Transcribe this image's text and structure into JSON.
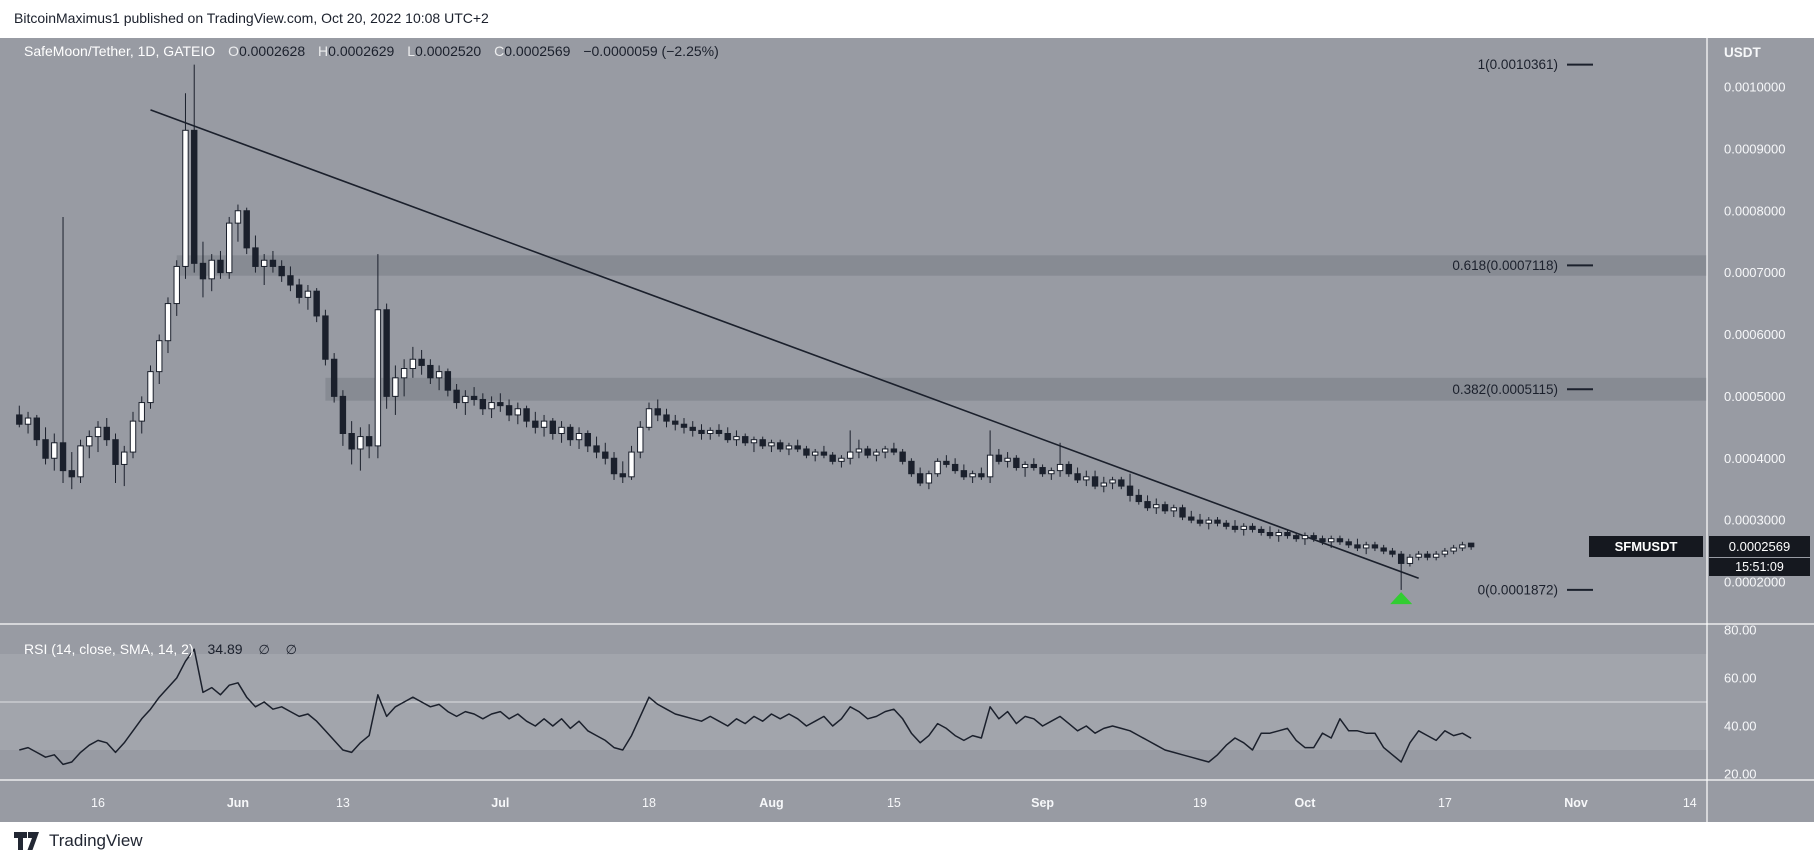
{
  "top_bar": {
    "text": "BitcoinMaximus1 published on TradingView.com, Oct 20, 2022 10:08 UTC+2"
  },
  "legend": {
    "title": "SafeMoon/Tether, 1D, GATEIO",
    "ohlc": [
      {
        "k": "O",
        "v": "0.0002628"
      },
      {
        "k": "H",
        "v": "0.0002629"
      },
      {
        "k": "L",
        "v": "0.0002520"
      },
      {
        "k": "C",
        "v": "0.0002569"
      }
    ],
    "change": "−0.0000059 (−2.25%)"
  },
  "rsi_legend": {
    "title": "RSI (14, close, SMA, 14, 2)",
    "value": "34.89",
    "hidden_a": "∅",
    "hidden_b": "∅"
  },
  "price_label": {
    "symbol": "SFMUSDT",
    "price": "0.0002569",
    "countdown": "15:51:09"
  },
  "footer": {
    "brand": "TradingView"
  },
  "colors": {
    "bg": "#989ba3",
    "ink": "#1b202c",
    "candle_up": "#ffffff",
    "candle_down": "#1b202c",
    "axis_text": "#f7f8fa",
    "separator": "rgba(255,255,255,0.8)",
    "fib_zone": "rgba(27,32,44,0.13)",
    "rsi_band": "rgba(255,255,255,0.10)",
    "badge_bg": "#15181f",
    "marker_green": "#32cd32"
  },
  "chart_data": {
    "type": "candlestick",
    "symbol": "SFMUSDT",
    "interval": "1D",
    "exchange": "GATEIO",
    "price_unit": "1e-4 USDT",
    "first_candle_date": "2022-05-07",
    "last_candle_date": "2022-10-20",
    "price_axis": {
      "title": "USDT",
      "ticks": [
        {
          "label": "0.0010000",
          "v": 10
        },
        {
          "label": "0.0009000",
          "v": 9
        },
        {
          "label": "0.0008000",
          "v": 8
        },
        {
          "label": "0.0007000",
          "v": 7
        },
        {
          "label": "0.0006000",
          "v": 6
        },
        {
          "label": "0.0005000",
          "v": 5
        },
        {
          "label": "0.0004000",
          "v": 4
        },
        {
          "label": "0.0003000",
          "v": 3
        },
        {
          "label": "0.0002000",
          "v": 2
        }
      ]
    },
    "time_axis": {
      "ticks": [
        {
          "label": "16",
          "i": 9,
          "month": false
        },
        {
          "label": "Jun",
          "i": 25,
          "month": true
        },
        {
          "label": "13",
          "i": 37,
          "month": false
        },
        {
          "label": "Jul",
          "i": 55,
          "month": true
        },
        {
          "label": "18",
          "i": 72,
          "month": false
        },
        {
          "label": "Aug",
          "i": 86,
          "month": true
        },
        {
          "label": "15",
          "i": 100,
          "month": false
        },
        {
          "label": "Sep",
          "i": 117,
          "month": true
        },
        {
          "label": "19",
          "i": 135,
          "month": false
        },
        {
          "label": "Oct",
          "i": 147,
          "month": true
        },
        {
          "label": "17",
          "i": 163,
          "month": false
        },
        {
          "label": "Nov",
          "i": 178,
          "month": true
        },
        {
          "label": "14",
          "i": 191,
          "month": false
        }
      ]
    },
    "rsi_axis": {
      "ticks": [
        {
          "label": "80.00",
          "v": 80
        },
        {
          "label": "60.00",
          "v": 60
        },
        {
          "label": "40.00",
          "v": 40
        },
        {
          "label": "20.00",
          "v": 20
        }
      ],
      "band": [
        30,
        70
      ],
      "mid_line": 50
    },
    "fib_levels": [
      {
        "label": "1(0.0010361)",
        "value": 10.361
      },
      {
        "label": "0.618(0.0007118)",
        "value": 7.118
      },
      {
        "label": "0.382(0.0005115)",
        "value": 5.115
      },
      {
        "label": "0(0.0001872)",
        "value": 1.872
      }
    ],
    "fib_zones": [
      {
        "top": 7.28,
        "bottom": 6.95,
        "from_i": 18
      },
      {
        "top": 5.3,
        "bottom": 4.93,
        "from_i": 35
      }
    ],
    "trendline": {
      "from": {
        "i": 15,
        "price": 9.63
      },
      "to": {
        "i": 160,
        "price": 2.06
      }
    },
    "low_marker": {
      "i": 158,
      "price": 1.74,
      "shape": "triangle-up"
    },
    "candles": [
      [
        4.7,
        4.85,
        4.5,
        4.55
      ],
      [
        4.55,
        4.75,
        4.4,
        4.65
      ],
      [
        4.65,
        4.7,
        4.2,
        4.3
      ],
      [
        4.3,
        4.5,
        3.9,
        4.0
      ],
      [
        4.0,
        4.4,
        3.8,
        4.25
      ],
      [
        4.25,
        7.9,
        3.6,
        3.8
      ],
      [
        3.8,
        4.1,
        3.5,
        3.7
      ],
      [
        3.7,
        4.3,
        3.6,
        4.2
      ],
      [
        4.2,
        4.45,
        4.0,
        4.35
      ],
      [
        4.35,
        4.6,
        4.1,
        4.5
      ],
      [
        4.5,
        4.65,
        4.2,
        4.3
      ],
      [
        4.3,
        4.4,
        3.6,
        3.9
      ],
      [
        3.9,
        4.2,
        3.55,
        4.1
      ],
      [
        4.1,
        4.75,
        4.0,
        4.6
      ],
      [
        4.6,
        5.0,
        4.4,
        4.9
      ],
      [
        4.9,
        5.5,
        4.8,
        5.4
      ],
      [
        5.4,
        6.0,
        5.2,
        5.9
      ],
      [
        5.9,
        6.6,
        5.7,
        6.5
      ],
      [
        6.5,
        7.2,
        6.3,
        7.1
      ],
      [
        7.1,
        9.9,
        6.9,
        9.3
      ],
      [
        9.3,
        10.361,
        7.0,
        7.15
      ],
      [
        7.15,
        7.5,
        6.6,
        6.9
      ],
      [
        6.9,
        7.3,
        6.7,
        7.2
      ],
      [
        7.2,
        7.35,
        6.9,
        7.0
      ],
      [
        7.0,
        7.9,
        6.9,
        7.8
      ],
      [
        7.8,
        8.1,
        7.5,
        8.0
      ],
      [
        8.0,
        8.05,
        7.3,
        7.4
      ],
      [
        7.4,
        7.6,
        7.0,
        7.1
      ],
      [
        7.1,
        7.3,
        6.8,
        7.2
      ],
      [
        7.2,
        7.35,
        7.0,
        7.1
      ],
      [
        7.1,
        7.2,
        6.85,
        6.95
      ],
      [
        6.95,
        7.1,
        6.7,
        6.8
      ],
      [
        6.8,
        6.9,
        6.5,
        6.6
      ],
      [
        6.6,
        6.8,
        6.4,
        6.7
      ],
      [
        6.7,
        6.75,
        6.2,
        6.3
      ],
      [
        6.3,
        6.4,
        5.5,
        5.6
      ],
      [
        5.6,
        5.7,
        4.9,
        5.0
      ],
      [
        5.0,
        5.1,
        4.2,
        4.4
      ],
      [
        4.4,
        4.6,
        3.9,
        4.15
      ],
      [
        4.15,
        4.5,
        3.8,
        4.35
      ],
      [
        4.35,
        4.55,
        4.0,
        4.2
      ],
      [
        4.2,
        7.3,
        4.0,
        6.4
      ],
      [
        6.4,
        6.5,
        4.8,
        5.0
      ],
      [
        5.0,
        5.5,
        4.7,
        5.3
      ],
      [
        5.3,
        5.6,
        5.0,
        5.45
      ],
      [
        5.45,
        5.8,
        5.3,
        5.6
      ],
      [
        5.6,
        5.75,
        5.35,
        5.5
      ],
      [
        5.5,
        5.6,
        5.2,
        5.3
      ],
      [
        5.3,
        5.5,
        5.1,
        5.4
      ],
      [
        5.4,
        5.45,
        5.0,
        5.1
      ],
      [
        5.1,
        5.2,
        4.8,
        4.9
      ],
      [
        4.9,
        5.1,
        4.7,
        5.0
      ],
      [
        5.0,
        5.15,
        4.85,
        4.95
      ],
      [
        4.95,
        5.05,
        4.7,
        4.8
      ],
      [
        4.8,
        5.0,
        4.65,
        4.9
      ],
      [
        4.9,
        5.05,
        4.75,
        4.85
      ],
      [
        4.85,
        4.95,
        4.6,
        4.7
      ],
      [
        4.7,
        4.9,
        4.55,
        4.8
      ],
      [
        4.8,
        4.85,
        4.5,
        4.6
      ],
      [
        4.6,
        4.75,
        4.4,
        4.5
      ],
      [
        4.5,
        4.7,
        4.35,
        4.6
      ],
      [
        4.6,
        4.65,
        4.3,
        4.4
      ],
      [
        4.4,
        4.6,
        4.25,
        4.5
      ],
      [
        4.5,
        4.55,
        4.2,
        4.3
      ],
      [
        4.3,
        4.5,
        4.15,
        4.4
      ],
      [
        4.4,
        4.45,
        4.1,
        4.2
      ],
      [
        4.2,
        4.35,
        4.0,
        4.1
      ],
      [
        4.1,
        4.25,
        3.9,
        4.0
      ],
      [
        4.0,
        4.1,
        3.65,
        3.75
      ],
      [
        3.75,
        3.95,
        3.6,
        3.7
      ],
      [
        3.7,
        4.2,
        3.65,
        4.1
      ],
      [
        4.1,
        4.6,
        4.0,
        4.5
      ],
      [
        4.5,
        4.9,
        4.45,
        4.8
      ],
      [
        4.8,
        4.95,
        4.6,
        4.7
      ],
      [
        4.7,
        4.8,
        4.5,
        4.6
      ],
      [
        4.6,
        4.7,
        4.45,
        4.55
      ],
      [
        4.55,
        4.65,
        4.4,
        4.5
      ],
      [
        4.5,
        4.6,
        4.35,
        4.45
      ],
      [
        4.45,
        4.55,
        4.3,
        4.4
      ],
      [
        4.4,
        4.5,
        4.3,
        4.45
      ],
      [
        4.45,
        4.55,
        4.35,
        4.4
      ],
      [
        4.4,
        4.5,
        4.25,
        4.3
      ],
      [
        4.3,
        4.45,
        4.2,
        4.35
      ],
      [
        4.35,
        4.4,
        4.2,
        4.25
      ],
      [
        4.25,
        4.35,
        4.1,
        4.3
      ],
      [
        4.3,
        4.35,
        4.15,
        4.2
      ],
      [
        4.2,
        4.3,
        4.1,
        4.25
      ],
      [
        4.25,
        4.3,
        4.1,
        4.15
      ],
      [
        4.15,
        4.25,
        4.05,
        4.2
      ],
      [
        4.2,
        4.3,
        4.1,
        4.15
      ],
      [
        4.15,
        4.2,
        4.0,
        4.05
      ],
      [
        4.05,
        4.15,
        3.95,
        4.1
      ],
      [
        4.1,
        4.2,
        4.0,
        4.05
      ],
      [
        4.05,
        4.1,
        3.9,
        3.95
      ],
      [
        3.95,
        4.05,
        3.85,
        4.0
      ],
      [
        4.0,
        4.45,
        3.9,
        4.1
      ],
      [
        4.1,
        4.3,
        4.0,
        4.15
      ],
      [
        4.15,
        4.2,
        4.0,
        4.05
      ],
      [
        4.05,
        4.15,
        3.95,
        4.1
      ],
      [
        4.1,
        4.2,
        4.0,
        4.15
      ],
      [
        4.15,
        4.25,
        4.05,
        4.1
      ],
      [
        4.1,
        4.15,
        3.9,
        3.95
      ],
      [
        3.95,
        4.0,
        3.7,
        3.75
      ],
      [
        3.75,
        3.85,
        3.55,
        3.6
      ],
      [
        3.6,
        3.8,
        3.5,
        3.75
      ],
      [
        3.75,
        4.0,
        3.7,
        3.95
      ],
      [
        3.95,
        4.05,
        3.85,
        3.9
      ],
      [
        3.9,
        4.0,
        3.75,
        3.8
      ],
      [
        3.8,
        3.9,
        3.65,
        3.7
      ],
      [
        3.7,
        3.8,
        3.6,
        3.75
      ],
      [
        3.75,
        3.85,
        3.65,
        3.7
      ],
      [
        3.7,
        4.45,
        3.6,
        4.05
      ],
      [
        4.05,
        4.15,
        3.9,
        3.95
      ],
      [
        3.95,
        4.1,
        3.85,
        4.0
      ],
      [
        4.0,
        4.05,
        3.8,
        3.85
      ],
      [
        3.85,
        3.95,
        3.7,
        3.9
      ],
      [
        3.9,
        4.0,
        3.8,
        3.85
      ],
      [
        3.85,
        3.9,
        3.7,
        3.75
      ],
      [
        3.75,
        3.85,
        3.65,
        3.8
      ],
      [
        3.8,
        4.25,
        3.7,
        3.9
      ],
      [
        3.9,
        3.95,
        3.7,
        3.75
      ],
      [
        3.75,
        3.85,
        3.6,
        3.65
      ],
      [
        3.65,
        3.8,
        3.55,
        3.7
      ],
      [
        3.7,
        3.8,
        3.5,
        3.55
      ],
      [
        3.55,
        3.7,
        3.45,
        3.6
      ],
      [
        3.6,
        3.7,
        3.5,
        3.65
      ],
      [
        3.65,
        3.7,
        3.5,
        3.55
      ],
      [
        3.55,
        3.75,
        3.3,
        3.4
      ],
      [
        3.4,
        3.5,
        3.25,
        3.3
      ],
      [
        3.3,
        3.4,
        3.15,
        3.2
      ],
      [
        3.2,
        3.35,
        3.1,
        3.25
      ],
      [
        3.25,
        3.3,
        3.1,
        3.15
      ],
      [
        3.15,
        3.25,
        3.05,
        3.2
      ],
      [
        3.2,
        3.25,
        3.0,
        3.05
      ],
      [
        3.05,
        3.15,
        2.95,
        3.0
      ],
      [
        3.0,
        3.1,
        2.9,
        2.95
      ],
      [
        2.95,
        3.05,
        2.85,
        3.0
      ],
      [
        3.0,
        3.05,
        2.9,
        2.95
      ],
      [
        2.95,
        3.0,
        2.85,
        2.9
      ],
      [
        2.9,
        3.0,
        2.8,
        2.85
      ],
      [
        2.85,
        2.95,
        2.75,
        2.9
      ],
      [
        2.9,
        2.95,
        2.8,
        2.85
      ],
      [
        2.85,
        2.9,
        2.75,
        2.8
      ],
      [
        2.8,
        2.9,
        2.7,
        2.75
      ],
      [
        2.75,
        2.85,
        2.65,
        2.8
      ],
      [
        2.8,
        2.85,
        2.7,
        2.75
      ],
      [
        2.75,
        2.8,
        2.65,
        2.7
      ],
      [
        2.7,
        2.8,
        2.6,
        2.75
      ],
      [
        2.75,
        2.8,
        2.65,
        2.7
      ],
      [
        2.7,
        2.75,
        2.6,
        2.65
      ],
      [
        2.65,
        2.75,
        2.55,
        2.7
      ],
      [
        2.7,
        2.75,
        2.6,
        2.65
      ],
      [
        2.65,
        2.7,
        2.55,
        2.6
      ],
      [
        2.6,
        2.7,
        2.5,
        2.55
      ],
      [
        2.55,
        2.65,
        2.45,
        2.6
      ],
      [
        2.6,
        2.65,
        2.5,
        2.55
      ],
      [
        2.55,
        2.6,
        2.45,
        2.5
      ],
      [
        2.5,
        2.55,
        2.4,
        2.45
      ],
      [
        2.45,
        2.5,
        1.872,
        2.3
      ],
      [
        2.3,
        2.45,
        2.25,
        2.4
      ],
      [
        2.4,
        2.5,
        2.35,
        2.45
      ],
      [
        2.45,
        2.5,
        2.35,
        2.4
      ],
      [
        2.4,
        2.5,
        2.35,
        2.45
      ],
      [
        2.45,
        2.55,
        2.4,
        2.5
      ],
      [
        2.5,
        2.6,
        2.45,
        2.55
      ],
      [
        2.55,
        2.65,
        2.5,
        2.6
      ],
      [
        2.628,
        2.629,
        2.52,
        2.569
      ]
    ],
    "rsi": [
      30,
      31,
      29,
      27,
      28,
      24,
      25,
      29,
      32,
      34,
      33,
      29,
      33,
      38,
      43,
      47,
      52,
      56,
      60,
      67,
      72,
      54,
      56,
      53,
      57,
      58,
      52,
      48,
      50,
      47,
      48,
      46,
      44,
      45,
      42,
      38,
      34,
      30,
      29,
      33,
      36,
      53,
      44,
      48,
      50,
      52,
      50,
      48,
      49,
      46,
      44,
      46,
      45,
      43,
      45,
      46,
      43,
      45,
      42,
      40,
      43,
      40,
      43,
      39,
      42,
      38,
      36,
      34,
      31,
      30,
      36,
      44,
      52,
      49,
      47,
      45,
      44,
      43,
      42,
      44,
      42,
      40,
      43,
      41,
      44,
      42,
      45,
      43,
      45,
      43,
      40,
      42,
      44,
      40,
      43,
      48,
      46,
      43,
      44,
      46,
      47,
      43,
      37,
      33,
      36,
      41,
      39,
      36,
      34,
      36,
      35,
      48,
      43,
      46,
      41,
      44,
      43,
      40,
      42,
      44,
      41,
      38,
      40,
      37,
      39,
      40,
      39,
      38,
      36,
      34,
      32,
      30,
      29,
      28,
      27,
      26,
      25,
      28,
      32,
      35,
      33,
      30,
      37,
      37,
      38,
      39,
      34,
      31,
      31,
      37,
      35,
      43,
      38,
      38,
      37,
      37,
      31,
      28,
      25,
      33,
      38,
      36,
      34,
      38,
      36,
      37,
      34.89
    ]
  }
}
